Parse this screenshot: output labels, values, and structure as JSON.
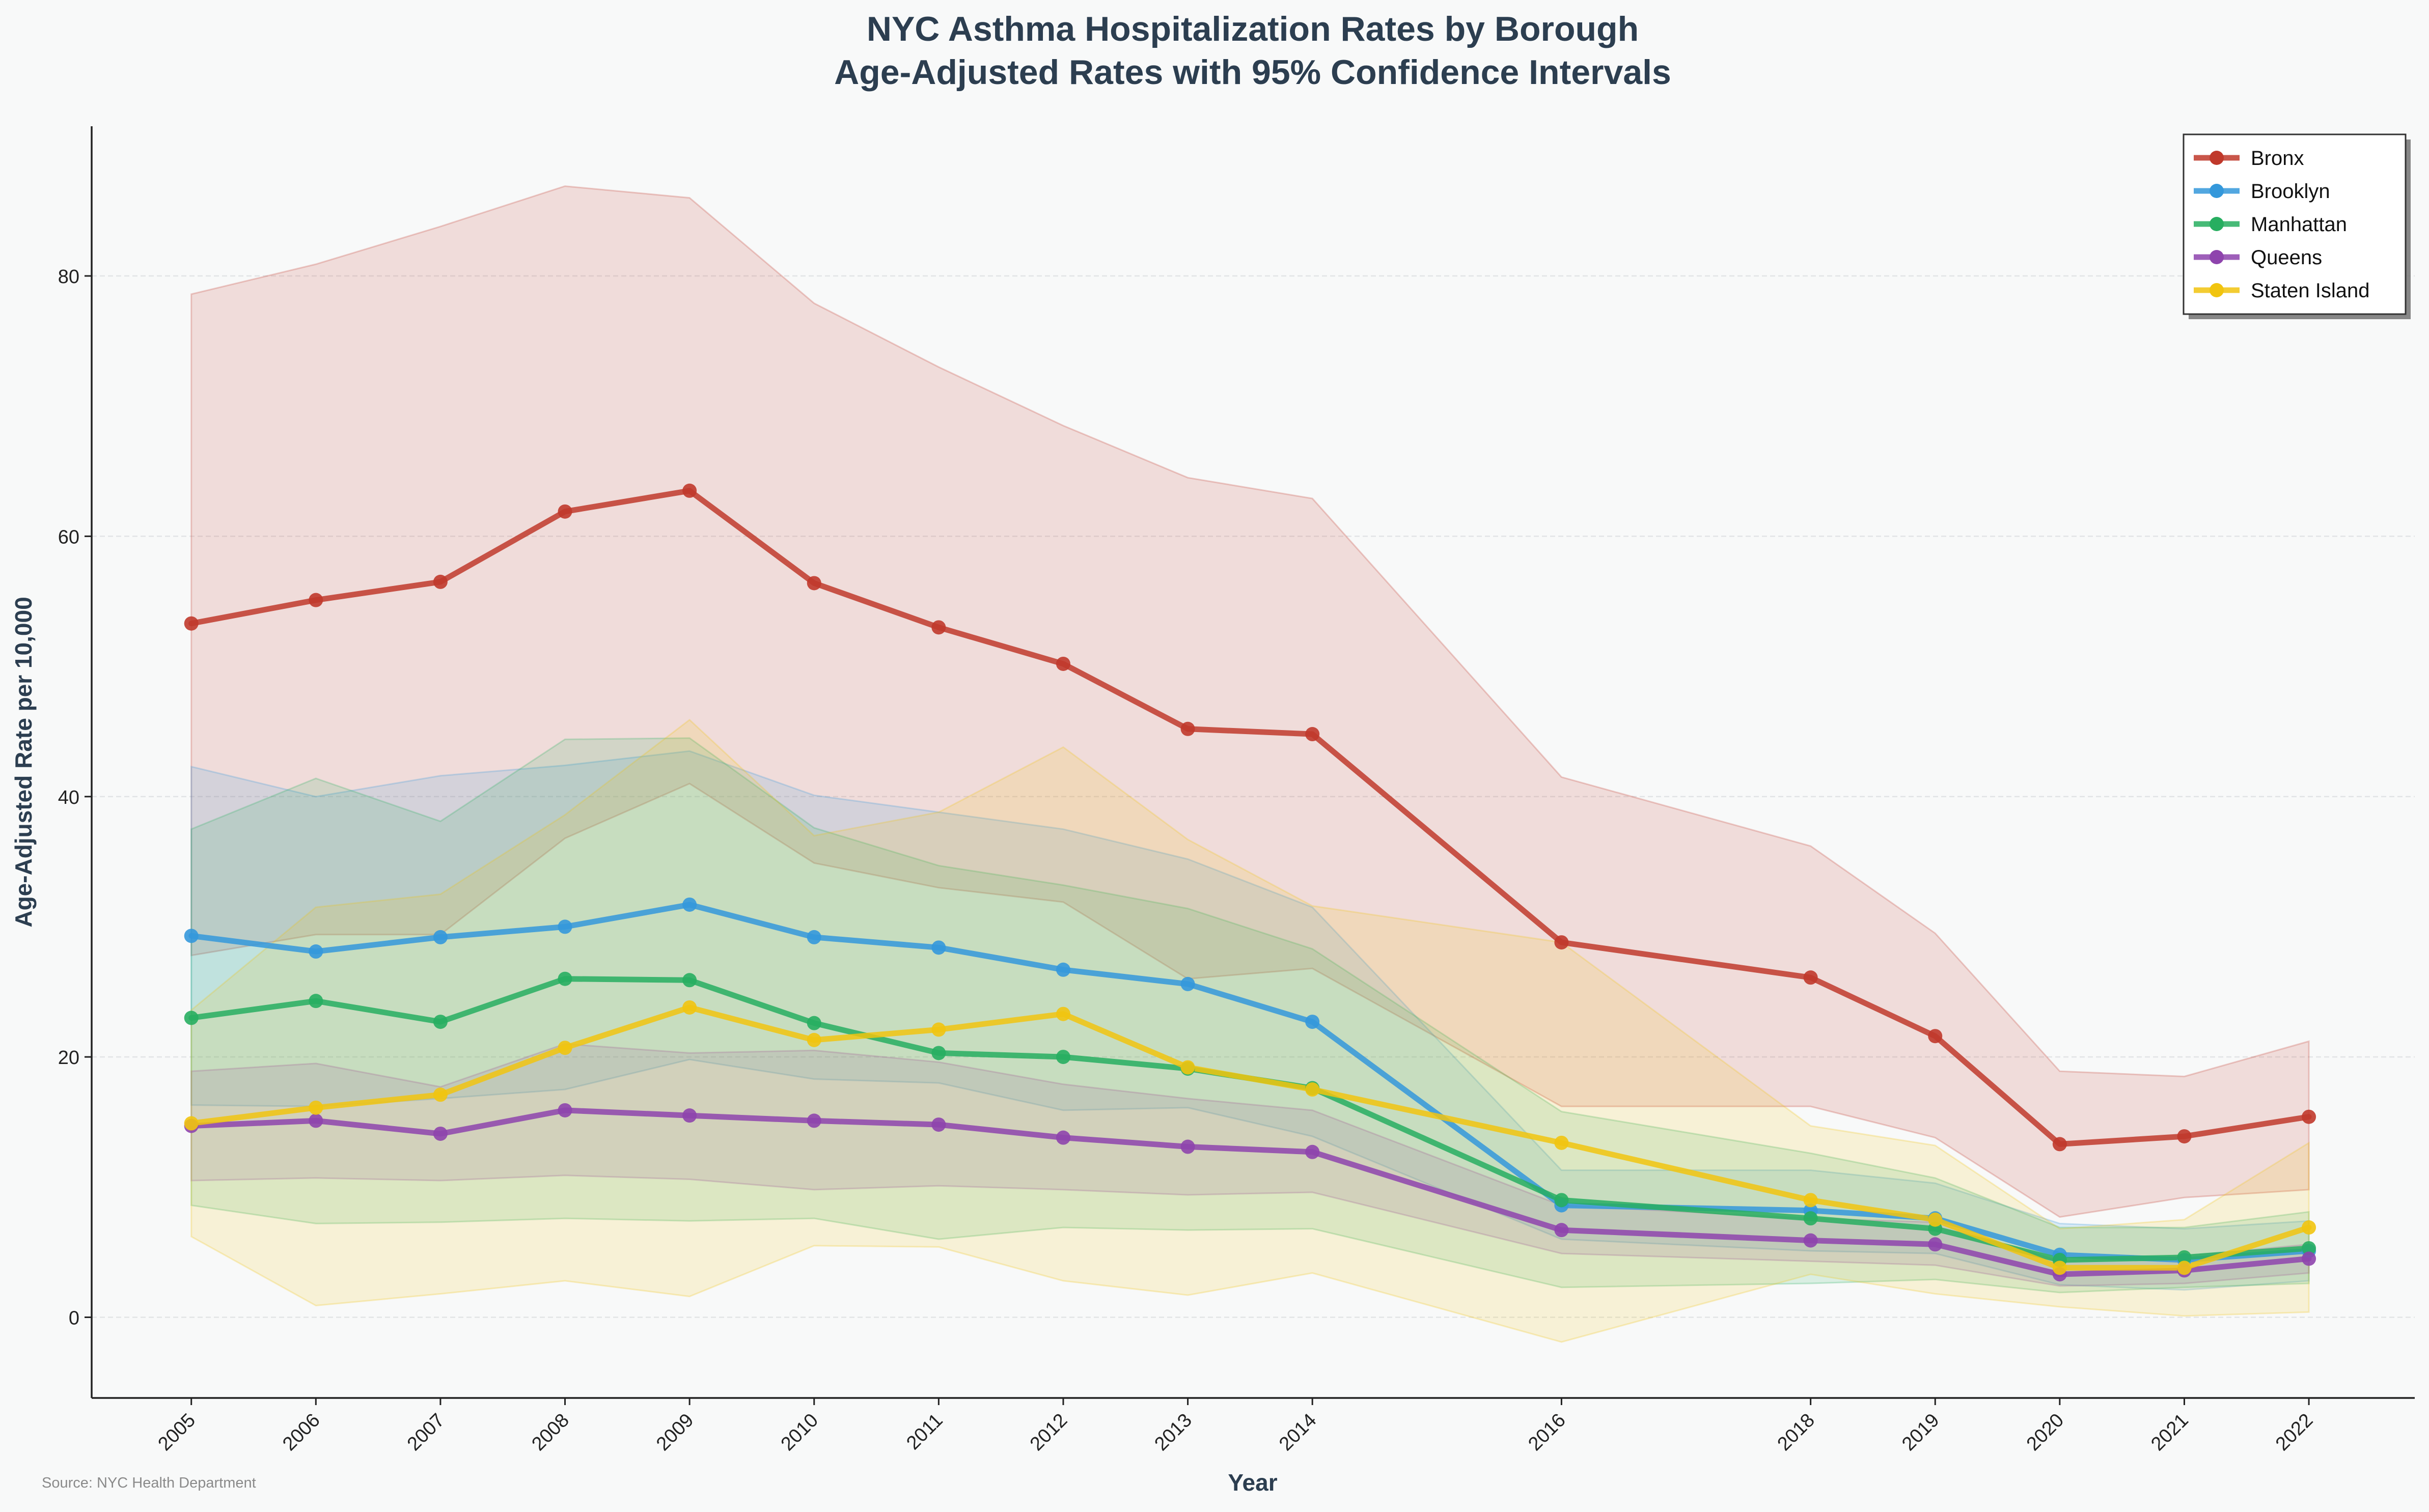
{
  "chart_data": {
    "type": "line",
    "title": "NYC Asthma Hospitalization Rates by Borough",
    "subtitle": "Age-Adjusted Rates with 95% Confidence Intervals",
    "xlabel": "Year",
    "ylabel": "Age-Adjusted Rate per 10,000",
    "source": "Source: NYC Health Department",
    "x": [
      2005,
      2006,
      2007,
      2008,
      2009,
      2010,
      2011,
      2012,
      2013,
      2014,
      2016,
      2018,
      2019,
      2020,
      2021,
      2022
    ],
    "x_tick_labels": [
      "2005",
      "2006",
      "2007",
      "2008",
      "2009",
      "2010",
      "2011",
      "2012",
      "2013",
      "2014",
      "2016",
      "2018",
      "2019",
      "2020",
      "2021",
      "2022"
    ],
    "xlim": [
      2004.2,
      2022.85
    ],
    "ylim": [
      -6.2,
      91.5
    ],
    "y_ticks": [
      0,
      20,
      40,
      60,
      80
    ],
    "y_tick_labels": [
      "0",
      "20",
      "40",
      "60",
      "80"
    ],
    "grid": "horizontal",
    "legend_position": "top-right",
    "series": [
      {
        "name": "Bronx",
        "color": "#c0392b",
        "values": [
          53.3,
          55.1,
          56.5,
          61.9,
          63.5,
          56.4,
          53.0,
          50.2,
          45.2,
          44.8,
          28.8,
          26.1,
          21.6,
          13.3,
          13.9,
          15.4
        ],
        "ci_upper": [
          78.6,
          80.9,
          83.8,
          86.9,
          86.0,
          77.9,
          73.0,
          68.5,
          64.5,
          62.9,
          41.5,
          36.2,
          29.5,
          18.9,
          18.5,
          21.2
        ],
        "ci_lower": [
          27.8,
          29.4,
          29.4,
          36.8,
          41.0,
          34.9,
          33.0,
          31.9,
          26.0,
          26.8,
          16.2,
          16.2,
          13.8,
          7.7,
          9.2,
          9.8
        ]
      },
      {
        "name": "Brooklyn",
        "color": "#3498db",
        "values": [
          29.3,
          28.1,
          29.2,
          30.0,
          31.7,
          29.2,
          28.4,
          26.7,
          25.6,
          22.7,
          8.6,
          8.2,
          7.6,
          4.8,
          4.4,
          5.1
        ],
        "ci_upper": [
          42.3,
          40.0,
          41.6,
          42.4,
          43.5,
          40.1,
          38.8,
          37.5,
          35.2,
          31.5,
          11.3,
          11.3,
          10.3,
          7.2,
          6.8,
          7.4
        ],
        "ci_lower": [
          16.3,
          16.2,
          16.8,
          17.5,
          19.8,
          18.3,
          18.0,
          15.9,
          16.1,
          13.9,
          6.0,
          5.1,
          4.9,
          2.5,
          2.1,
          2.8
        ]
      },
      {
        "name": "Manhattan",
        "color": "#27ae60",
        "values": [
          23.0,
          24.3,
          22.7,
          26.0,
          25.9,
          22.6,
          20.3,
          20.0,
          19.1,
          17.6,
          9.0,
          7.6,
          6.8,
          4.4,
          4.6,
          5.3
        ],
        "ci_upper": [
          37.5,
          41.4,
          38.1,
          44.4,
          44.5,
          37.6,
          34.7,
          33.2,
          31.4,
          28.3,
          15.8,
          12.6,
          10.7,
          6.9,
          6.9,
          8.1
        ],
        "ci_lower": [
          8.6,
          7.2,
          7.3,
          7.6,
          7.4,
          7.6,
          6.0,
          6.9,
          6.7,
          6.8,
          2.3,
          2.6,
          2.9,
          1.9,
          2.3,
          2.6
        ]
      },
      {
        "name": "Queens",
        "color": "#8e44ad",
        "values": [
          14.7,
          15.1,
          14.1,
          15.9,
          15.5,
          15.1,
          14.8,
          13.8,
          13.1,
          12.7,
          6.7,
          5.9,
          5.6,
          3.3,
          3.6,
          4.5
        ],
        "ci_upper": [
          18.9,
          19.5,
          17.7,
          21.0,
          20.3,
          20.5,
          19.6,
          17.9,
          16.8,
          15.9,
          8.6,
          7.6,
          7.3,
          4.3,
          4.7,
          5.6
        ],
        "ci_lower": [
          10.5,
          10.7,
          10.5,
          10.9,
          10.6,
          9.8,
          10.1,
          9.8,
          9.4,
          9.6,
          4.9,
          4.3,
          4.0,
          2.4,
          2.6,
          3.4
        ]
      },
      {
        "name": "Staten Island",
        "color": "#f1c40f",
        "values": [
          14.9,
          16.1,
          17.1,
          20.7,
          23.8,
          21.3,
          22.1,
          23.3,
          19.2,
          17.5,
          13.4,
          9.0,
          7.5,
          3.8,
          3.8,
          6.9
        ],
        "ci_upper": [
          23.6,
          31.5,
          32.5,
          38.6,
          45.9,
          37.0,
          38.8,
          43.8,
          36.7,
          31.6,
          28.8,
          14.7,
          13.2,
          6.8,
          7.5,
          13.4
        ],
        "ci_lower": [
          6.2,
          0.9,
          1.8,
          2.8,
          1.6,
          5.5,
          5.4,
          2.8,
          1.7,
          3.4,
          -1.9,
          3.3,
          1.8,
          0.8,
          0.1,
          0.4
        ]
      }
    ]
  }
}
